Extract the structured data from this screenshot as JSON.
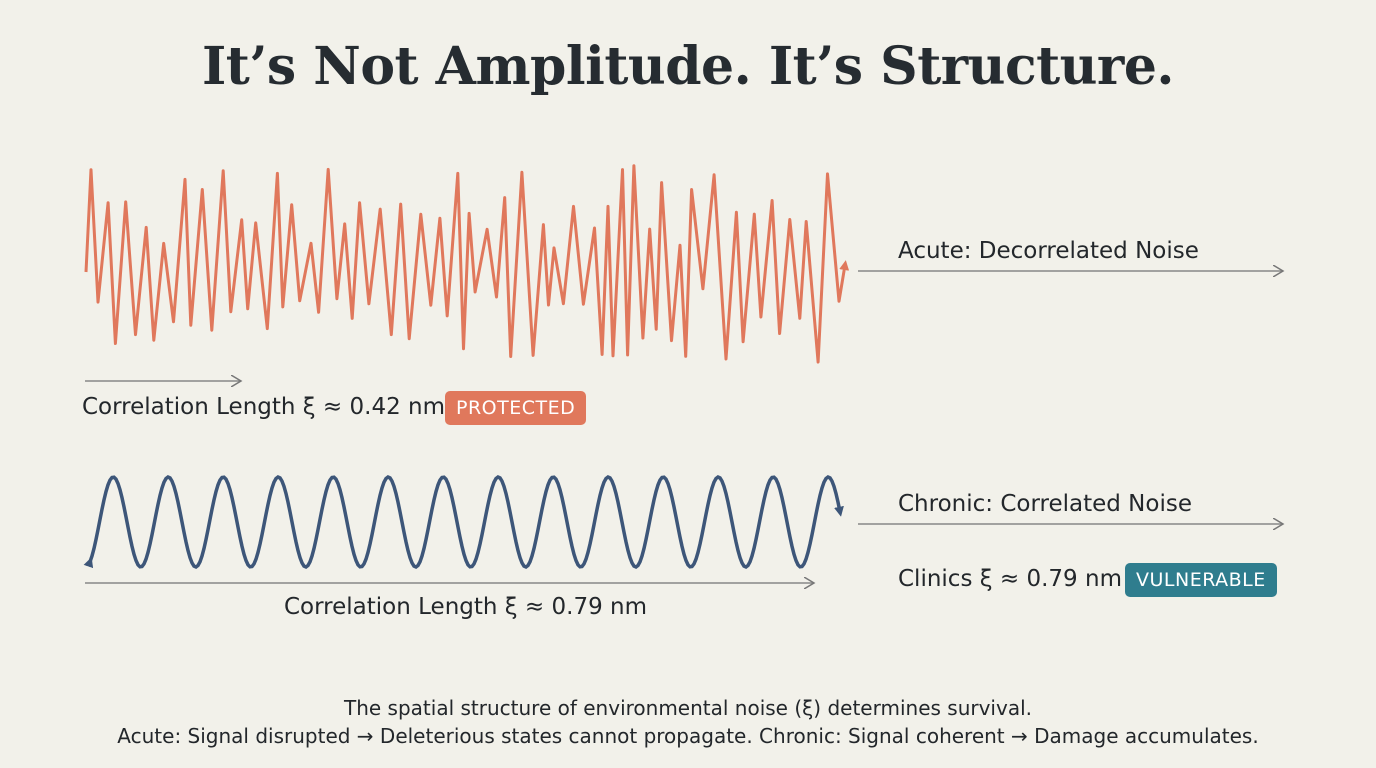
{
  "title": "It’s Not Amplitude. It’s Structure.",
  "acute": {
    "label": "Acute: Decorrelated Noise",
    "correlation_label": "Correlation Length ξ ≈ 0.42 nm",
    "badge": "PROTECTED",
    "color": "#e0785c"
  },
  "chronic": {
    "label": "Chronic: Correlated Noise",
    "correlation_label": "Correlation Length ξ ≈ 0.79 nm",
    "clinics_label": "Clinics ξ ≈ 0.79 nm",
    "badge": "VULNERABLE",
    "color": "#3d5679",
    "badge_color": "#2f7d8e"
  },
  "caption": {
    "line1": "The spatial structure of environmental noise (ξ) determines survival.",
    "line2": "Acute: Signal disrupted → Deleterious states cannot propagate. Chronic: Signal coherent → Damage accumulates."
  }
}
